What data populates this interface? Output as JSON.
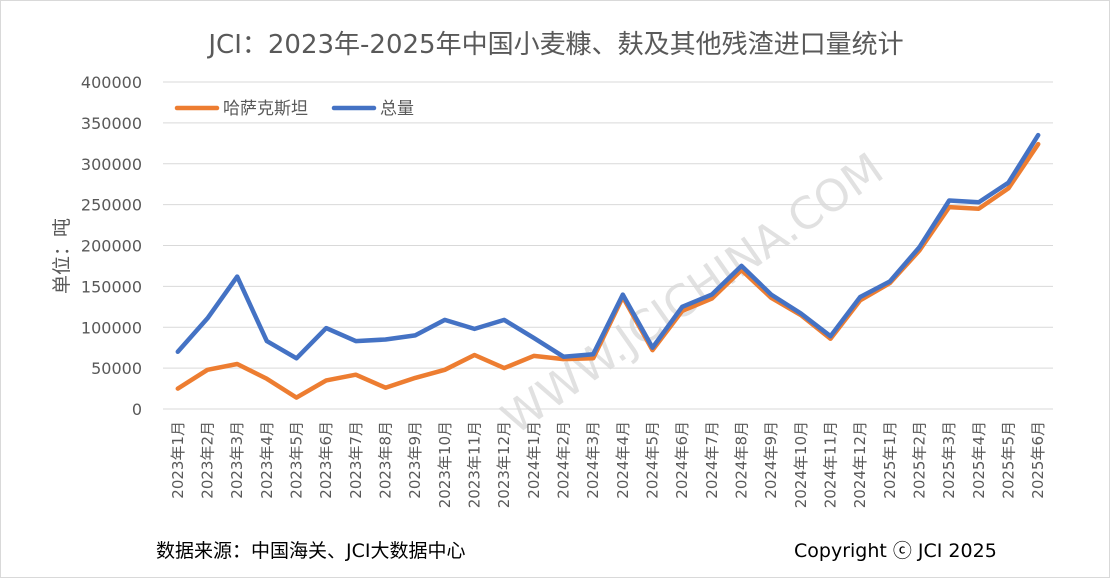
{
  "chart_data": {
    "type": "line",
    "title": "JCI：2023年-2025年中国小麦糠、麸及其他残渣进口量统计",
    "ylabel": "单位：吨",
    "xlabel": "",
    "ylim": [
      0,
      400000
    ],
    "yticks": [
      "0",
      "50000",
      "100000",
      "150000",
      "200000",
      "250000",
      "300000",
      "350000",
      "400000"
    ],
    "grid": true,
    "legend_position": "top-left",
    "categories": [
      "2023年1月",
      "2023年2月",
      "2023年3月",
      "2023年4月",
      "2023年5月",
      "2023年6月",
      "2023年7月",
      "2023年8月",
      "2023年9月",
      "2023年10月",
      "2023年11月",
      "2023年12月",
      "2024年1月",
      "2024年2月",
      "2024年3月",
      "2024年4月",
      "2024年5月",
      "2024年6月",
      "2024年7月",
      "2024年8月",
      "2024年9月",
      "2024年10月",
      "2024年11月",
      "2024年12月",
      "2025年1月",
      "2025年2月",
      "2025年3月",
      "2025年4月",
      "2025年5月",
      "2025年6月"
    ],
    "series": [
      {
        "name": "哈萨克斯坦",
        "color": "#ed7d31",
        "values": [
          25000,
          48000,
          55000,
          37000,
          14000,
          35000,
          42000,
          26000,
          38000,
          48000,
          66000,
          50000,
          65000,
          61000,
          62000,
          137000,
          72000,
          120000,
          135000,
          170000,
          136000,
          115000,
          86000,
          133000,
          154000,
          194000,
          247000,
          245000,
          270000,
          324000
        ]
      },
      {
        "name": "总量",
        "color": "#4472c4",
        "values": [
          70000,
          111000,
          162000,
          83000,
          62000,
          99000,
          83000,
          85000,
          90000,
          109000,
          98000,
          109000,
          87000,
          64000,
          67000,
          140000,
          75000,
          125000,
          140000,
          175000,
          140000,
          117000,
          89000,
          137000,
          156000,
          198000,
          255000,
          253000,
          277000,
          335000
        ]
      }
    ]
  },
  "watermark": "WWW.JCICHINA.COM",
  "footer": {
    "source": "数据来源：中国海关、JCI大数据中心",
    "copyright": "Copyright ⓒ JCI 2025"
  }
}
